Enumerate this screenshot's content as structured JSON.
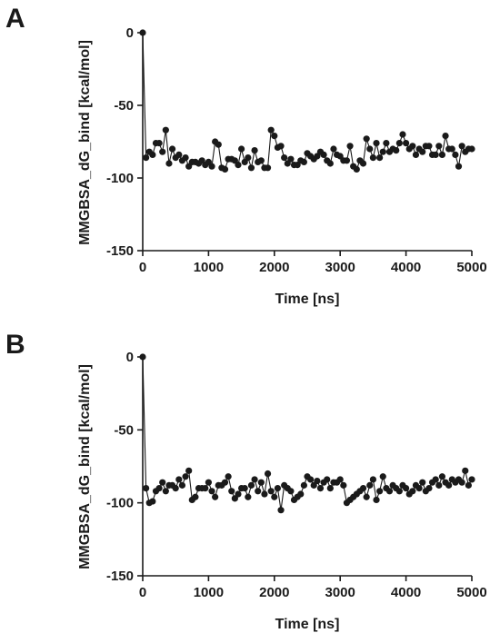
{
  "chart_data": [
    {
      "panel_label": "A",
      "type": "scatter",
      "connected": true,
      "xlabel": "Time [ns]",
      "ylabel": "MMGBSA_dG_bind [kcal/mol]",
      "xlim": [
        0,
        5000
      ],
      "ylim": [
        -150,
        0
      ],
      "xticks": [
        0,
        1000,
        2000,
        3000,
        4000,
        5000
      ],
      "yticks": [
        0,
        -50,
        -100,
        -150
      ],
      "grid": false,
      "color": "#1a1a1a",
      "x": [
        0,
        50,
        100,
        150,
        200,
        250,
        300,
        350,
        400,
        450,
        500,
        550,
        600,
        650,
        700,
        750,
        800,
        850,
        900,
        950,
        1000,
        1050,
        1100,
        1150,
        1200,
        1250,
        1300,
        1350,
        1400,
        1450,
        1500,
        1550,
        1600,
        1650,
        1700,
        1750,
        1800,
        1850,
        1900,
        1950,
        2000,
        2050,
        2100,
        2150,
        2200,
        2250,
        2300,
        2350,
        2400,
        2450,
        2500,
        2550,
        2600,
        2650,
        2700,
        2750,
        2800,
        2850,
        2900,
        2950,
        3000,
        3050,
        3100,
        3150,
        3200,
        3250,
        3300,
        3350,
        3400,
        3450,
        3500,
        3550,
        3600,
        3650,
        3700,
        3750,
        3800,
        3850,
        3900,
        3950,
        4000,
        4050,
        4100,
        4150,
        4200,
        4250,
        4300,
        4350,
        4400,
        4450,
        4500,
        4550,
        4600,
        4650,
        4700,
        4750,
        4800,
        4850,
        4900,
        4950,
        5000
      ],
      "y": [
        0,
        -86,
        -82,
        -84,
        -76,
        -76,
        -82,
        -67,
        -90,
        -80,
        -86,
        -84,
        -88,
        -86,
        -92,
        -89,
        -89,
        -90,
        -88,
        -91,
        -89,
        -92,
        -75,
        -77,
        -93,
        -94,
        -87,
        -87,
        -88,
        -91,
        -80,
        -89,
        -86,
        -93,
        -81,
        -89,
        -88,
        -93,
        -93,
        -67,
        -71,
        -79,
        -78,
        -86,
        -90,
        -87,
        -91,
        -91,
        -88,
        -89,
        -83,
        -85,
        -87,
        -85,
        -82,
        -84,
        -88,
        -90,
        -80,
        -84,
        -85,
        -88,
        -88,
        -78,
        -92,
        -94,
        -88,
        -90,
        -73,
        -80,
        -86,
        -76,
        -86,
        -82,
        -76,
        -82,
        -80,
        -81,
        -76,
        -70,
        -76,
        -80,
        -78,
        -84,
        -80,
        -82,
        -78,
        -78,
        -84,
        -84,
        -78,
        -84,
        -71,
        -80,
        -80,
        -84,
        -92,
        -78,
        -82,
        -80,
        -80
      ]
    },
    {
      "panel_label": "B",
      "type": "scatter",
      "connected": true,
      "xlabel": "Time [ns]",
      "ylabel": "MMGBSA_dG_bind [kcal/mol]",
      "xlim": [
        0,
        5000
      ],
      "ylim": [
        -150,
        0
      ],
      "xticks": [
        0,
        1000,
        2000,
        3000,
        4000,
        5000
      ],
      "yticks": [
        0,
        -50,
        -100,
        -150
      ],
      "grid": false,
      "color": "#1a1a1a",
      "x": [
        0,
        50,
        100,
        150,
        200,
        250,
        300,
        350,
        400,
        450,
        500,
        550,
        600,
        650,
        700,
        750,
        800,
        850,
        900,
        950,
        1000,
        1050,
        1100,
        1150,
        1200,
        1250,
        1300,
        1350,
        1400,
        1450,
        1500,
        1550,
        1600,
        1650,
        1700,
        1750,
        1800,
        1850,
        1900,
        1950,
        2000,
        2050,
        2100,
        2150,
        2200,
        2250,
        2300,
        2350,
        2400,
        2450,
        2500,
        2550,
        2600,
        2650,
        2700,
        2750,
        2800,
        2850,
        2900,
        2950,
        3000,
        3050,
        3100,
        3150,
        3200,
        3250,
        3300,
        3350,
        3400,
        3450,
        3500,
        3550,
        3600,
        3650,
        3700,
        3750,
        3800,
        3850,
        3900,
        3950,
        4000,
        4050,
        4100,
        4150,
        4200,
        4250,
        4300,
        4350,
        4400,
        4450,
        4500,
        4550,
        4600,
        4650,
        4700,
        4750,
        4800,
        4850,
        4900,
        4950,
        5000
      ],
      "y": [
        0,
        -90,
        -100,
        -99,
        -92,
        -90,
        -86,
        -92,
        -88,
        -88,
        -90,
        -84,
        -88,
        -82,
        -78,
        -98,
        -96,
        -90,
        -90,
        -90,
        -86,
        -92,
        -96,
        -88,
        -88,
        -86,
        -82,
        -92,
        -97,
        -94,
        -90,
        -90,
        -96,
        -88,
        -84,
        -92,
        -86,
        -94,
        -80,
        -92,
        -96,
        -90,
        -105,
        -88,
        -90,
        -92,
        -98,
        -96,
        -94,
        -88,
        -82,
        -84,
        -88,
        -85,
        -90,
        -86,
        -84,
        -90,
        -86,
        -86,
        -84,
        -88,
        -100,
        -98,
        -96,
        -94,
        -92,
        -90,
        -96,
        -88,
        -84,
        -98,
        -92,
        -82,
        -90,
        -92,
        -88,
        -90,
        -92,
        -88,
        -90,
        -94,
        -92,
        -88,
        -90,
        -86,
        -92,
        -90,
        -86,
        -84,
        -88,
        -82,
        -86,
        -88,
        -84,
        -86,
        -84,
        -86,
        -78,
        -88,
        -84
      ]
    }
  ]
}
